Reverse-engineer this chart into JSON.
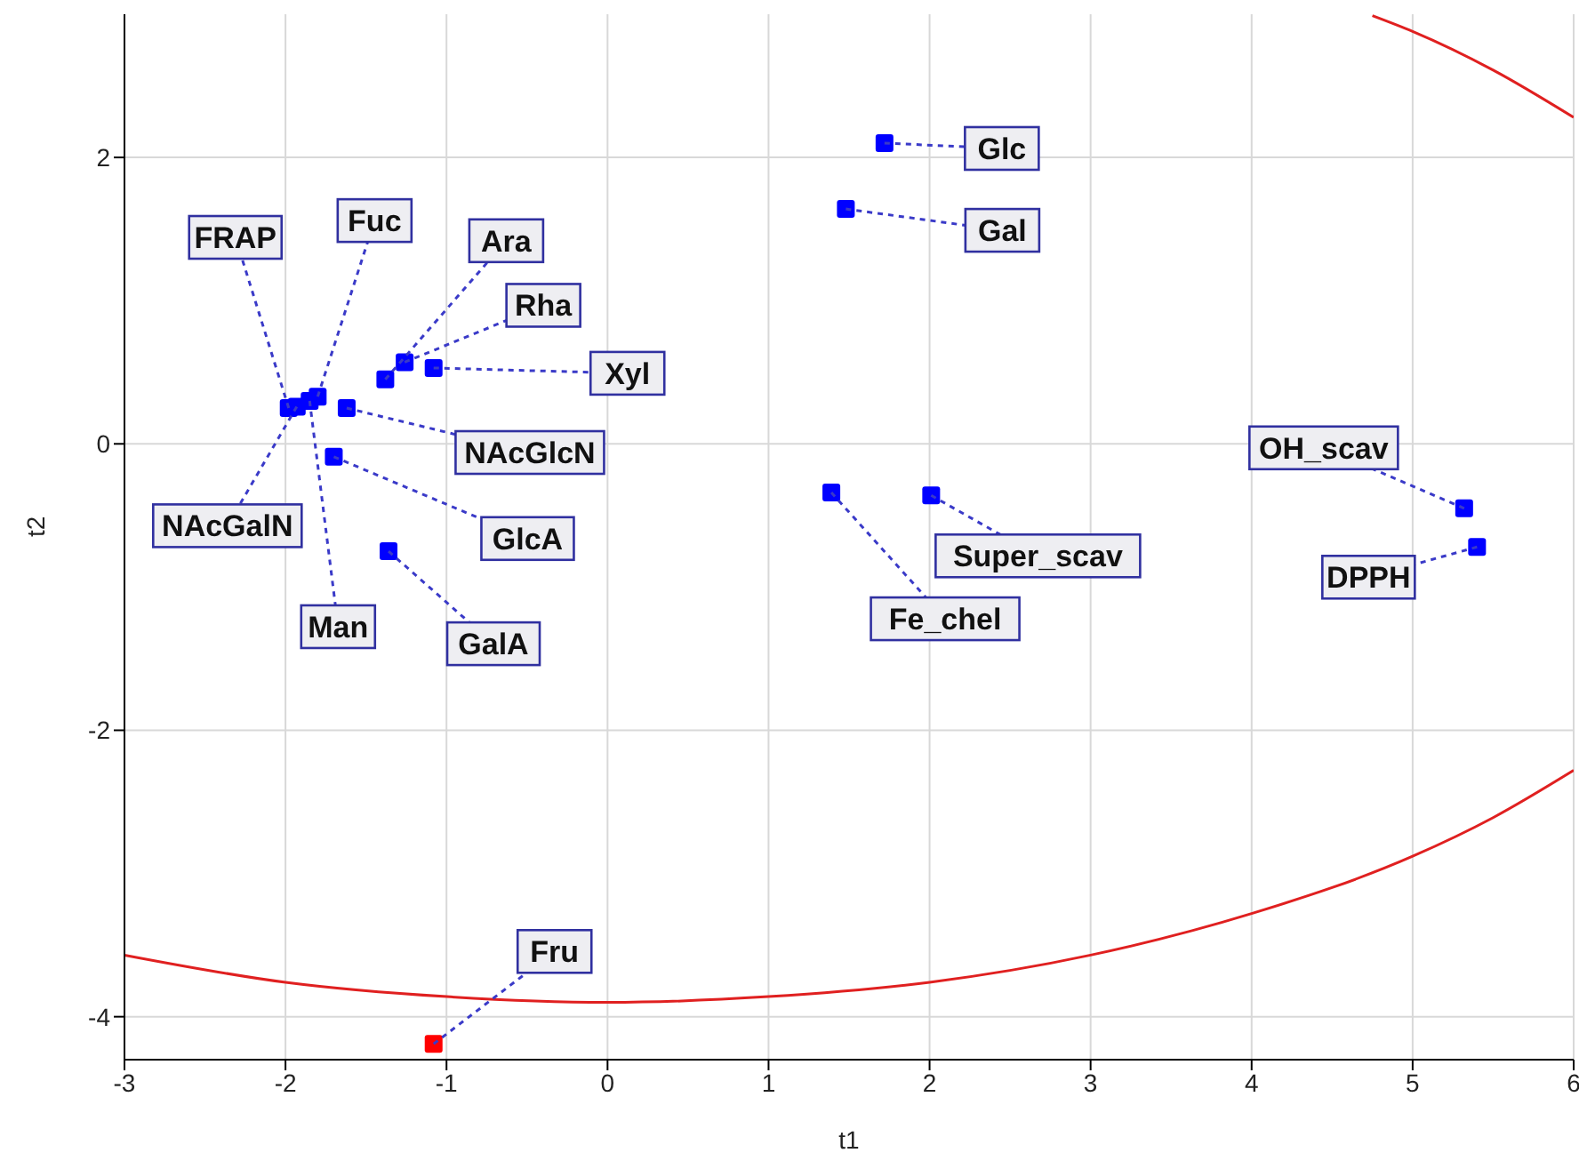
{
  "chart_data": {
    "type": "scatter",
    "xlabel": "t1",
    "ylabel": "t2",
    "xlim": [
      -3,
      6
    ],
    "ylim": [
      -4.3,
      3
    ],
    "xticks": [
      -3,
      -2,
      -1,
      0,
      1,
      2,
      3,
      4,
      5,
      6
    ],
    "yticks": [
      -4,
      -2,
      0,
      2
    ],
    "grid": true,
    "legend": false,
    "series": [
      {
        "marker": "square",
        "x": [
          1.72,
          1.48,
          -1.98,
          -1.8,
          -1.38,
          -1.26,
          -1.08,
          -1.62,
          -1.93,
          -1.7,
          -1.85,
          -1.36,
          1.39,
          2.01,
          5.32,
          5.4,
          -1.08
        ],
        "values": [
          2.1,
          1.64,
          0.25,
          0.33,
          0.45,
          0.57,
          0.53,
          0.25,
          0.26,
          -0.09,
          0.3,
          -0.75,
          -0.34,
          -0.36,
          -0.45,
          -0.72,
          -4.19
        ],
        "colors": [
          "#0000ff",
          "#0000ff",
          "#0000ff",
          "#0000ff",
          "#0000ff",
          "#0000ff",
          "#0000ff",
          "#0000ff",
          "#0000ff",
          "#0000ff",
          "#0000ff",
          "#0000ff",
          "#0000ff",
          "#0000ff",
          "#0000ff",
          "#0000ff",
          "#ff0000"
        ]
      },
      {
        "type": "line",
        "color": "#e02020",
        "x": [
          -3,
          -2,
          -1,
          0,
          1,
          2,
          3,
          4,
          5,
          5.5,
          6
        ],
        "values": [
          -3.57,
          -3.76,
          -3.86,
          -3.9,
          -3.86,
          -3.76,
          -3.57,
          -3.28,
          -2.88,
          -2.61,
          -2.28
        ]
      },
      {
        "type": "line",
        "color": "#e02020",
        "x": [
          4.75,
          5,
          5.5,
          6
        ],
        "values": [
          2.99,
          2.88,
          2.61,
          2.28
        ]
      }
    ],
    "annotations": [
      {
        "text": "Glc",
        "x": 1.72,
        "y": 2.1
      },
      {
        "text": "Gal",
        "x": 1.48,
        "y": 1.64
      },
      {
        "text": "FRAP",
        "x": -1.98,
        "y": 0.25
      },
      {
        "text": "Fuc",
        "x": -1.8,
        "y": 0.33
      },
      {
        "text": "Ara",
        "x": -1.38,
        "y": 0.45
      },
      {
        "text": "Rha",
        "x": -1.26,
        "y": 0.57
      },
      {
        "text": "Xyl",
        "x": -1.08,
        "y": 0.53
      },
      {
        "text": "NAcGlcN",
        "x": -1.62,
        "y": 0.25
      },
      {
        "text": "NAcGalN",
        "x": -1.93,
        "y": 0.26
      },
      {
        "text": "GlcA",
        "x": -1.7,
        "y": -0.09
      },
      {
        "text": "Man",
        "x": -1.85,
        "y": 0.3
      },
      {
        "text": "GalA",
        "x": -1.36,
        "y": -0.75
      },
      {
        "text": "Fe_chel",
        "x": 1.39,
        "y": -0.34
      },
      {
        "text": "Super_scav",
        "x": 2.01,
        "y": -0.36
      },
      {
        "text": "OH_scav",
        "x": 5.32,
        "y": -0.45
      },
      {
        "text": "DPPH",
        "x": 5.4,
        "y": -0.72
      },
      {
        "text": "Fru",
        "x": -1.08,
        "y": -4.19
      }
    ]
  }
}
